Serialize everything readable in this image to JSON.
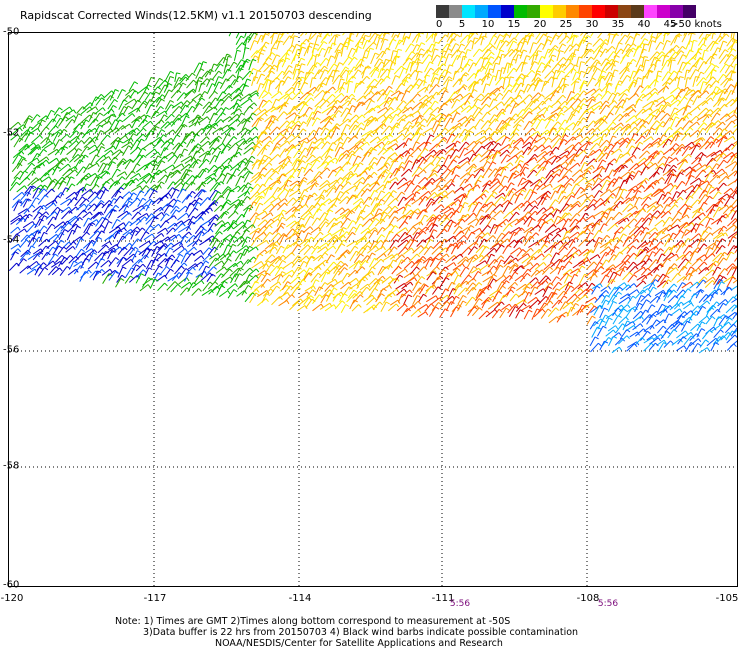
{
  "title": "Rapidscat Corrected Winds(12.5KM) v1.1 20150703 descending",
  "legend": {
    "colors": [
      "#3a3a3a",
      "#8a8a8a",
      "#00e5ff",
      "#00aaff",
      "#0055ff",
      "#0000cc",
      "#00bb00",
      "#33aa00",
      "#ffff00",
      "#ffcc00",
      "#ff8800",
      "#ff4400",
      "#ff0000",
      "#cc0000",
      "#8b4513",
      "#5a3a1a",
      "#ff44ff",
      "#cc00cc",
      "#8800aa",
      "#440066"
    ],
    "labels": [
      "0",
      "5",
      "10",
      "15",
      "20",
      "25",
      "30",
      "35",
      "40",
      "45",
      ">50 knots"
    ]
  },
  "map": {
    "y_labels": [
      "-50",
      "-52",
      "-54",
      "-56",
      "-58",
      "-60"
    ],
    "x_labels": [
      "-120",
      "-117",
      "-114",
      "-111",
      "-108",
      "-105"
    ],
    "time_labels": [
      "5:56",
      "5:56"
    ]
  },
  "notes": [
    "Note: 1) Times are GMT 2)Times along bottom correspond to measurement at -50S",
    "3)Data buffer is 22 hrs from 20150703 4) Black wind barbs indicate possible contamination",
    "NOAA/NESDIS/Center for Satellite Applications and Research"
  ]
}
